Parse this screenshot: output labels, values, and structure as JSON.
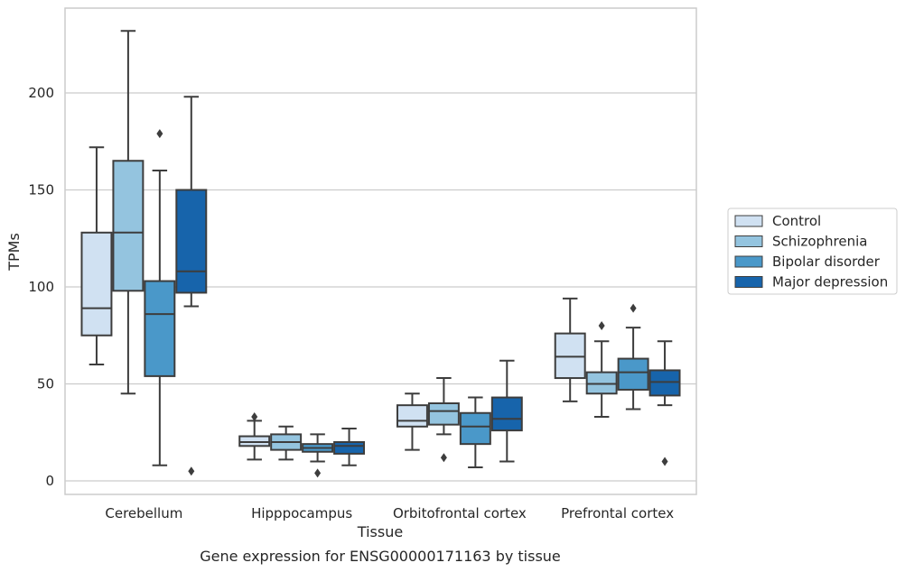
{
  "chart_data": {
    "type": "box",
    "title": "",
    "caption": "Gene expression for ENSG00000171163 by tissue",
    "xlabel": "Tissue",
    "ylabel": "TPMs",
    "ylim": [
      -6,
      245
    ],
    "yticks": [
      0,
      50,
      100,
      150,
      200
    ],
    "grid": "horizontal",
    "legend_position": "right",
    "categories": [
      "Cerebellum",
      "Hipppocampus",
      "Orbitofrontal cortex",
      "Prefrontal cortex"
    ],
    "series": [
      {
        "name": "Control",
        "color": "#d0e1f2",
        "boxes": [
          {
            "whislo": 60,
            "q1": 75,
            "med": 89,
            "q3": 128,
            "whishi": 172,
            "fliers": []
          },
          {
            "whislo": 11,
            "q1": 18,
            "med": 20,
            "q3": 23,
            "whishi": 31,
            "fliers": [
              33
            ]
          },
          {
            "whislo": 16,
            "q1": 28,
            "med": 31,
            "q3": 39,
            "whishi": 45,
            "fliers": []
          },
          {
            "whislo": 41,
            "q1": 53,
            "med": 64,
            "q3": 76,
            "whishi": 94,
            "fliers": []
          }
        ]
      },
      {
        "name": "Schizophrenia",
        "color": "#94c4df",
        "boxes": [
          {
            "whislo": 45,
            "q1": 98,
            "med": 128,
            "q3": 165,
            "whishi": 232,
            "fliers": []
          },
          {
            "whislo": 11,
            "q1": 16,
            "med": 20,
            "q3": 24,
            "whishi": 28,
            "fliers": []
          },
          {
            "whislo": 24,
            "q1": 29,
            "med": 36,
            "q3": 40,
            "whishi": 53,
            "fliers": [
              12
            ]
          },
          {
            "whislo": 33,
            "q1": 45,
            "med": 50,
            "q3": 56,
            "whishi": 72,
            "fliers": [
              80
            ]
          }
        ]
      },
      {
        "name": "Bipolar disorder",
        "color": "#4a98c9",
        "boxes": [
          {
            "whislo": 8,
            "q1": 54,
            "med": 86,
            "q3": 103,
            "whishi": 160,
            "fliers": [
              179
            ]
          },
          {
            "whislo": 10,
            "q1": 15,
            "med": 17,
            "q3": 19,
            "whishi": 24,
            "fliers": [
              4
            ]
          },
          {
            "whislo": 7,
            "q1": 19,
            "med": 28,
            "q3": 35,
            "whishi": 43,
            "fliers": []
          },
          {
            "whislo": 37,
            "q1": 47,
            "med": 56,
            "q3": 63,
            "whishi": 79,
            "fliers": [
              89
            ]
          }
        ]
      },
      {
        "name": "Major depression",
        "color": "#1764ab",
        "boxes": [
          {
            "whislo": 90,
            "q1": 97,
            "med": 108,
            "q3": 150,
            "whishi": 198,
            "fliers": [
              5
            ]
          },
          {
            "whislo": 8,
            "q1": 14,
            "med": 18,
            "q3": 20,
            "whishi": 27,
            "fliers": []
          },
          {
            "whislo": 10,
            "q1": 26,
            "med": 32,
            "q3": 43,
            "whishi": 62,
            "fliers": []
          },
          {
            "whislo": 39,
            "q1": 44,
            "med": 51,
            "q3": 57,
            "whishi": 72,
            "fliers": [
              10
            ]
          }
        ]
      }
    ]
  }
}
